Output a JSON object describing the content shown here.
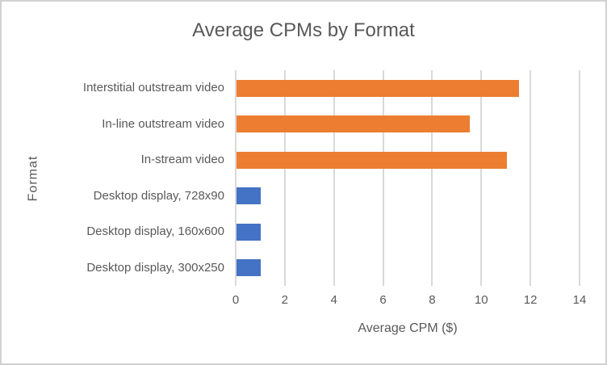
{
  "frame": {
    "background": "#FFFFFF",
    "border_color": "#D1D1D1"
  },
  "chart_data": {
    "type": "bar",
    "orientation": "horizontal",
    "title": "Average CPMs by Format",
    "xlabel": "Average CPM ($)",
    "ylabel": "Format",
    "categories": [
      "Interstitial outstream video",
      "In-line outstream video",
      "In-stream video",
      "Desktop display, 728x90",
      "Desktop display, 160x600",
      "Desktop display, 300x250"
    ],
    "values": [
      11.5,
      9.5,
      11,
      1,
      1,
      1
    ],
    "bar_colors": [
      "#ED7D31",
      "#ED7D31",
      "#ED7D31",
      "#4472C4",
      "#4472C4",
      "#4472C4"
    ],
    "xlim": [
      0,
      14
    ],
    "xticks": [
      0,
      2,
      4,
      6,
      8,
      10,
      12,
      14
    ],
    "grid": true,
    "legend": "none",
    "colors": {
      "video_series": "#ED7D31",
      "display_series": "#4472C4",
      "text": "#595959",
      "gridline": "#D9D9D9"
    }
  }
}
